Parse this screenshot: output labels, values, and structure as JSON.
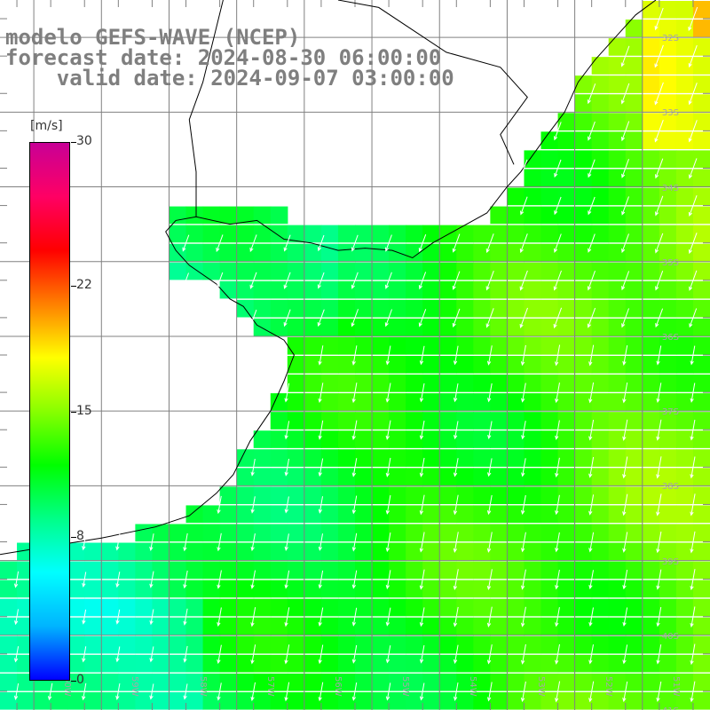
{
  "title": {
    "line1": "modelo GEFS-WAVE (NCEP)",
    "line2": "forecast date: 2024-08-30 06:00:00",
    "line3": "valid date: 2024-09-07 03:00:00"
  },
  "colorbar": {
    "unit": "[m/s]",
    "range": [
      0,
      30
    ],
    "ticks": [
      {
        "value": 30,
        "label": "30"
      },
      {
        "value": 22,
        "label": "22"
      },
      {
        "value": 15,
        "label": "15"
      },
      {
        "value": 8,
        "label": "8"
      },
      {
        "value": 0,
        "label": "0"
      }
    ],
    "stops": [
      "#0000ff",
      "#00b4ff",
      "#00ffff",
      "#00ff88",
      "#00ff00",
      "#88ff00",
      "#ffff00",
      "#ff8000",
      "#ff0000",
      "#ff0064",
      "#c80096"
    ]
  },
  "lat_labels": [
    "32S",
    "33S",
    "34S",
    "35S",
    "36S",
    "37S",
    "38S",
    "39S",
    "40S",
    "41S"
  ],
  "lon_labels": [
    "60W",
    "59W",
    "58W",
    "57W",
    "56W",
    "55W",
    "54W",
    "53W",
    "52W",
    "51W"
  ],
  "map": {
    "lon_range": [
      -61,
      -50.5
    ],
    "lat_range": [
      -41,
      -31.5
    ],
    "wind_direction": "from NE (arrows pointing SSW)",
    "field_description": "wind speed m/s"
  }
}
